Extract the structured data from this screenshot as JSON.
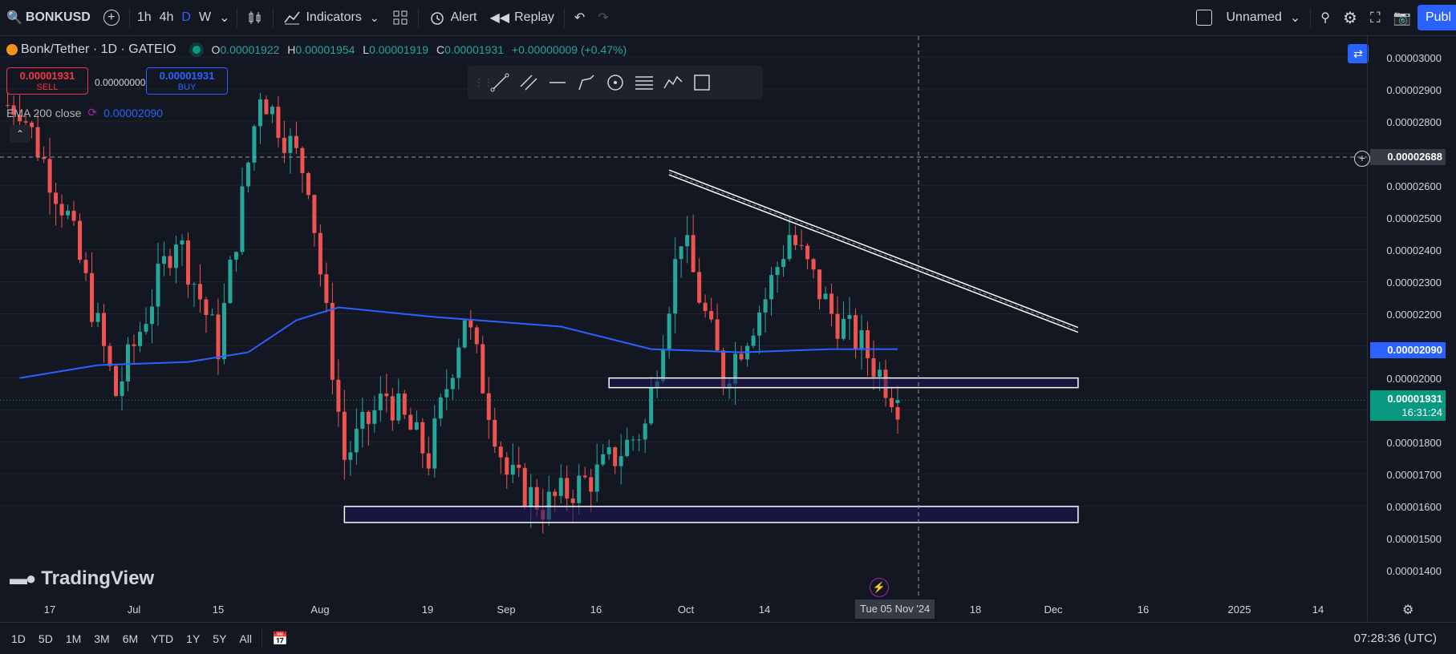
{
  "topbar": {
    "symbol": "BONKUSD",
    "intervals": [
      "1h",
      "4h",
      "D",
      "W"
    ],
    "active_interval": "D",
    "indicators_label": "Indicators",
    "alert_label": "Alert",
    "replay_label": "Replay",
    "layout_name": "Unnamed",
    "publish_label": "Publ"
  },
  "legend": {
    "title": "Bonk/Tether · 1D · GATEIO",
    "o_label": "O",
    "o_value": "0.00001922",
    "h_label": "H",
    "h_value": "0.00001954",
    "l_label": "L",
    "l_value": "0.00001919",
    "c_label": "C",
    "c_value": "0.00001931",
    "change": "+0.00000009 (+0.47%)",
    "sell_price": "0.00001931",
    "sell_label": "SELL",
    "spread": "0.00000000",
    "buy_price": "0.00001931",
    "buy_label": "BUY",
    "ema_label": "EMA 200 close",
    "ema_value": "0.00002090"
  },
  "price_axis": {
    "labels": [
      "0.00003000",
      "0.00002900",
      "0.00002800",
      "0.00002600",
      "0.00002500",
      "0.00002400",
      "0.00002300",
      "0.00002200",
      "0.00002000",
      "0.00001800",
      "0.00001700",
      "0.00001600",
      "0.00001500",
      "0.00001400"
    ],
    "crosshair_price": "0.00002688",
    "ema_tag": "0.00002090",
    "last_price_tag": "0.00001931",
    "countdown": "16:31:24"
  },
  "time_axis": {
    "labels": [
      "17",
      "Jul",
      "15",
      "Aug",
      "19",
      "Sep",
      "16",
      "Oct",
      "14",
      "18",
      "Dec",
      "16",
      "2025",
      "14"
    ],
    "crosshair_date": "Tue 05 Nov '24"
  },
  "bottombar": {
    "ranges": [
      "1D",
      "5D",
      "1M",
      "3M",
      "6M",
      "YTD",
      "1Y",
      "5Y",
      "All"
    ],
    "clock": "07:28:36 (UTC)"
  },
  "branding": {
    "logo_text": "TradingView"
  },
  "colors": {
    "background": "#131722",
    "up": "#26a69a",
    "down": "#ef5350",
    "ema": "#2962ff",
    "accent": "#2962ff",
    "last_price": "#089981"
  },
  "chart_data": {
    "type": "candlestick",
    "symbol": "Bonk/Tether",
    "interval": "1D",
    "exchange": "GATEIO",
    "ylim": [
      1.35e-05,
      3.08e-05
    ],
    "x_range": [
      "2024-06-12",
      "2025-01-31"
    ],
    "last": {
      "date": "2024-11-05",
      "open": 1.922e-05,
      "high": 1.954e-05,
      "low": 1.919e-05,
      "close": 1.931e-05
    },
    "ema_period": 200,
    "ema_last": 2.09e-05,
    "ema_path": [
      {
        "x": "2024-06-12",
        "y": 2e-05
      },
      {
        "x": "2024-06-25",
        "y": 2.04e-05
      },
      {
        "x": "2024-07-10",
        "y": 2.05e-05
      },
      {
        "x": "2024-07-20",
        "y": 2.08e-05
      },
      {
        "x": "2024-07-28",
        "y": 2.18e-05
      },
      {
        "x": "2024-08-04",
        "y": 2.22e-05
      },
      {
        "x": "2024-08-20",
        "y": 2.19e-05
      },
      {
        "x": "2024-09-10",
        "y": 2.16e-05
      },
      {
        "x": "2024-09-25",
        "y": 2.09e-05
      },
      {
        "x": "2024-10-10",
        "y": 2.08e-05
      },
      {
        "x": "2024-10-25",
        "y": 2.09e-05
      },
      {
        "x": "2024-11-05",
        "y": 2.09e-05
      }
    ],
    "drawings": [
      {
        "kind": "trendline",
        "from": {
          "x": "2024-09-28",
          "y": 2.64e-05
        },
        "to": {
          "x": "2024-12-05",
          "y": 2.15e-05
        }
      },
      {
        "kind": "zone",
        "x0": "2024-09-18",
        "x1": "2024-12-05",
        "y0": 1.97e-05,
        "y1": 2e-05
      },
      {
        "kind": "zone",
        "x0": "2024-08-05",
        "x1": "2024-12-05",
        "y0": 1.55e-05,
        "y1": 1.6e-05
      }
    ],
    "key_points": [
      {
        "x": "2024-06-12",
        "y": 2.85e-05
      },
      {
        "x": "2024-06-20",
        "y": 2.5e-05
      },
      {
        "x": "2024-06-28",
        "y": 1.95e-05
      },
      {
        "x": "2024-07-08",
        "y": 2.45e-05
      },
      {
        "x": "2024-07-15",
        "y": 2.1e-05
      },
      {
        "x": "2024-07-22",
        "y": 2.9e-05
      },
      {
        "x": "2024-07-30",
        "y": 2.62e-05
      },
      {
        "x": "2024-08-05",
        "y": 1.75e-05
      },
      {
        "x": "2024-08-12",
        "y": 1.95e-05
      },
      {
        "x": "2024-08-19",
        "y": 1.75e-05
      },
      {
        "x": "2024-08-25",
        "y": 2.2e-05
      },
      {
        "x": "2024-09-01",
        "y": 1.7e-05
      },
      {
        "x": "2024-09-07",
        "y": 1.6e-05
      },
      {
        "x": "2024-09-16",
        "y": 1.7e-05
      },
      {
        "x": "2024-09-24",
        "y": 1.85e-05
      },
      {
        "x": "2024-09-30",
        "y": 2.45e-05
      },
      {
        "x": "2024-10-07",
        "y": 2e-05
      },
      {
        "x": "2024-10-14",
        "y": 2.25e-05
      },
      {
        "x": "2024-10-18",
        "y": 2.45e-05
      },
      {
        "x": "2024-10-25",
        "y": 2.2e-05
      },
      {
        "x": "2024-10-30",
        "y": 2.1e-05
      },
      {
        "x": "2024-11-05",
        "y": 1.93e-05
      }
    ]
  }
}
